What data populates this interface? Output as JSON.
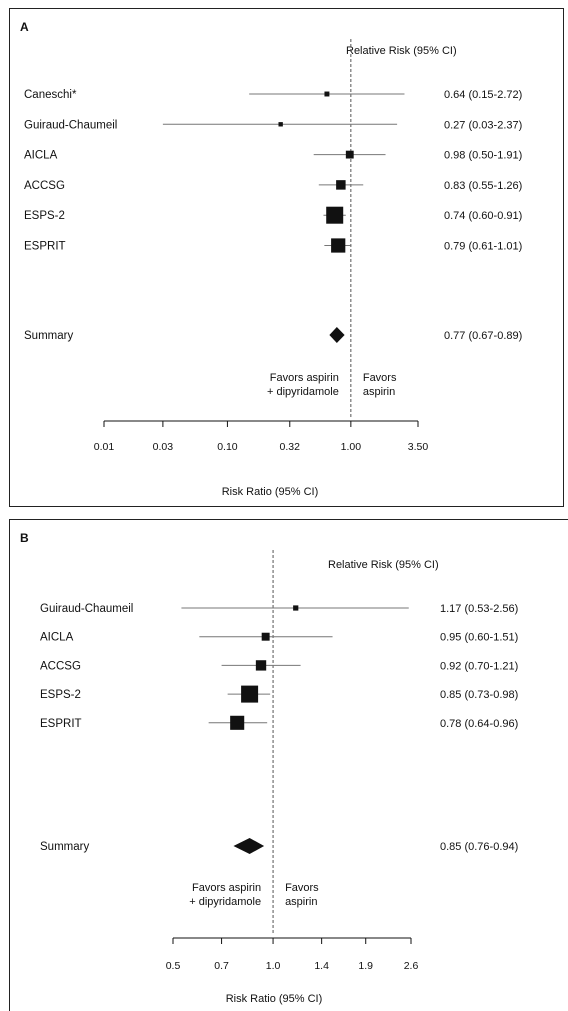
{
  "chart_data": [
    {
      "panel": "A",
      "type": "forest",
      "header": "Relative Risk (95% CI)",
      "xlabel": "Risk Ratio (95% CI)",
      "x_scale": "log",
      "xlim": [
        0.01,
        3.5
      ],
      "ticks": [
        0.01,
        0.03,
        0.1,
        0.32,
        1.0,
        3.5
      ],
      "tick_labels": [
        "0.01",
        "0.03",
        "0.10",
        "0.32",
        "1.00",
        "3.50"
      ],
      "reference": 1.0,
      "favor_left": [
        "Favors aspirin",
        "+ dipyridamole"
      ],
      "favor_right": [
        "Favors",
        "aspirin"
      ],
      "studies": [
        {
          "name": "Caneschi*",
          "rr": 0.64,
          "lo": 0.15,
          "hi": 2.72,
          "ci_text": "0.64 (0.15-2.72)",
          "weight": 0.8
        },
        {
          "name": "Guiraud-Chaumeil",
          "rr": 0.27,
          "lo": 0.03,
          "hi": 2.37,
          "ci_text": "0.27 (0.03-2.37)",
          "weight": 0.4
        },
        {
          "name": "AICLA",
          "rr": 0.98,
          "lo": 0.5,
          "hi": 1.91,
          "ci_text": "0.98 (0.50-1.91)",
          "weight": 5
        },
        {
          "name": "ACCSG",
          "rr": 0.83,
          "lo": 0.55,
          "hi": 1.26,
          "ci_text": "0.83 (0.55-1.26)",
          "weight": 9
        },
        {
          "name": "ESPS-2",
          "rr": 0.74,
          "lo": 0.6,
          "hi": 0.91,
          "ci_text": "0.74 (0.60-0.91)",
          "weight": 42
        },
        {
          "name": "ESPRIT",
          "rr": 0.79,
          "lo": 0.61,
          "hi": 1.01,
          "ci_text": "0.79 (0.61-1.01)",
          "weight": 27
        }
      ],
      "summary": {
        "name": "Summary",
        "rr": 0.77,
        "lo": 0.67,
        "hi": 0.89,
        "ci_text": "0.77 (0.67-0.89)"
      }
    },
    {
      "panel": "B",
      "type": "forest",
      "header": "Relative Risk (95% CI)",
      "xlabel": "Risk Ratio (95% CI)",
      "x_scale": "log",
      "xlim": [
        0.5,
        2.6
      ],
      "ticks": [
        0.5,
        0.7,
        1.0,
        1.4,
        1.9,
        2.6
      ],
      "tick_labels": [
        "0.5",
        "0.7",
        "1.0",
        "1.4",
        "1.9",
        "2.6"
      ],
      "reference": 1.0,
      "favor_left": [
        "Favors aspirin",
        "+ dipyridamole"
      ],
      "favor_right": [
        "Favors",
        "aspirin"
      ],
      "studies": [
        {
          "name": "Guiraud-Chaumeil",
          "rr": 1.17,
          "lo": 0.53,
          "hi": 2.56,
          "ci_text": "1.17 (0.53-2.56)",
          "weight": 1
        },
        {
          "name": "AICLA",
          "rr": 0.95,
          "lo": 0.6,
          "hi": 1.51,
          "ci_text": "0.95 (0.60-1.51)",
          "weight": 5
        },
        {
          "name": "ACCSG",
          "rr": 0.92,
          "lo": 0.7,
          "hi": 1.21,
          "ci_text": "0.92 (0.70-1.21)",
          "weight": 11
        },
        {
          "name": "ESPS-2",
          "rr": 0.85,
          "lo": 0.73,
          "hi": 0.98,
          "ci_text": "0.85 (0.73-0.98)",
          "weight": 40
        },
        {
          "name": "ESPRIT",
          "rr": 0.78,
          "lo": 0.64,
          "hi": 0.96,
          "ci_text": "0.78 (0.64-0.96)",
          "weight": 25
        }
      ],
      "summary": {
        "name": "Summary",
        "rr": 0.85,
        "lo": 0.76,
        "hi": 0.94,
        "ci_text": "0.85 (0.76-0.94)"
      }
    }
  ]
}
